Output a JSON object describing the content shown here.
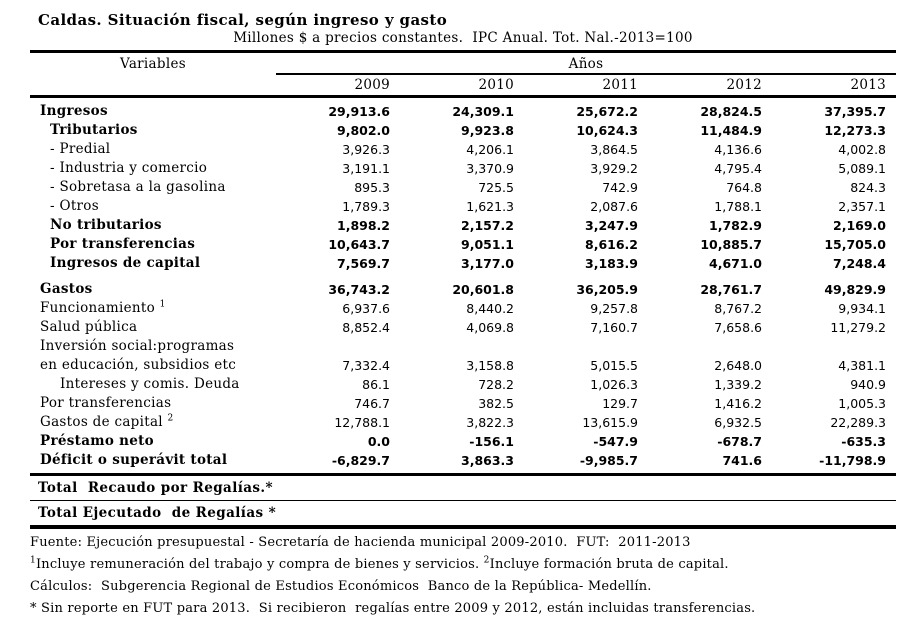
{
  "title": "Caldas. Situación fiscal, según ingreso y gasto",
  "subtitle": "Millones $ a precios constantes.  IPC Anual. Tot. Nal.-2013=100",
  "header": {
    "variables_label": "Variables",
    "years_label": "Años",
    "years": [
      "2009",
      "2010",
      "2011",
      "2012",
      "2013"
    ]
  },
  "table": {
    "rows": [
      {
        "label": "Ingresos",
        "bold": true,
        "indent": 0,
        "values": [
          "29,913.6",
          "24,309.1",
          "25,672.2",
          "28,824.5",
          "37,395.7"
        ]
      },
      {
        "label": "Tributarios",
        "bold": true,
        "indent": 1,
        "values": [
          "9,802.0",
          "9,923.8",
          "10,624.3",
          "11,484.9",
          "12,273.3"
        ]
      },
      {
        "label": "- Predial",
        "bold": false,
        "indent": 1,
        "values": [
          "3,926.3",
          "4,206.1",
          "3,864.5",
          "4,136.6",
          "4,002.8"
        ]
      },
      {
        "label": "- Industria y comercio",
        "bold": false,
        "indent": 1,
        "values": [
          "3,191.1",
          "3,370.9",
          "3,929.2",
          "4,795.4",
          "5,089.1"
        ]
      },
      {
        "label": "- Sobretasa a la gasolina",
        "bold": false,
        "indent": 1,
        "values": [
          "895.3",
          "725.5",
          "742.9",
          "764.8",
          "824.3"
        ]
      },
      {
        "label": "- Otros",
        "bold": false,
        "indent": 1,
        "values": [
          "1,789.3",
          "1,621.3",
          "2,087.6",
          "1,788.1",
          "2,357.1"
        ]
      },
      {
        "label": "No tributarios",
        "bold": true,
        "indent": 1,
        "values": [
          "1,898.2",
          "2,157.2",
          "3,247.9",
          "1,782.9",
          "2,169.0"
        ]
      },
      {
        "label": "Por transferencias",
        "bold": true,
        "indent": 1,
        "values": [
          "10,643.7",
          "9,051.1",
          "8,616.2",
          "10,885.7",
          "15,705.0"
        ]
      },
      {
        "label": "Ingresos de capital",
        "bold": true,
        "indent": 1,
        "values": [
          "7,569.7",
          "3,177.0",
          "3,183.9",
          "4,671.0",
          "7,248.4"
        ]
      },
      {
        "label": "Gastos",
        "bold": true,
        "indent": 0,
        "gap_before": true,
        "values": [
          "36,743.2",
          "20,601.8",
          "36,205.9",
          "28,761.7",
          "49,829.9"
        ]
      },
      {
        "label": "Funcionamiento ",
        "sup": "1",
        "bold": false,
        "indent": 0,
        "values": [
          "6,937.6",
          "8,440.2",
          "9,257.8",
          "8,767.2",
          "9,934.1"
        ]
      },
      {
        "label": "Salud pública",
        "bold": false,
        "indent": 0,
        "values": [
          "8,852.4",
          "4,069.8",
          "7,160.7",
          "7,658.6",
          "11,279.2"
        ]
      },
      {
        "label2": [
          "Inversión social:programas",
          "en educación, subsidios etc"
        ],
        "bold": false,
        "indent": 0,
        "values": [
          "7,332.4",
          "3,158.8",
          "5,015.5",
          "2,648.0",
          "4,381.1"
        ]
      },
      {
        "label": "Intereses y comis. Deuda",
        "bold": false,
        "indent": 2,
        "values": [
          "86.1",
          "728.2",
          "1,026.3",
          "1,339.2",
          "940.9"
        ]
      },
      {
        "label": "Por transferencias",
        "bold": false,
        "indent": 0,
        "values": [
          "746.7",
          "382.5",
          "129.7",
          "1,416.2",
          "1,005.3"
        ]
      },
      {
        "label": "Gastos de capital ",
        "sup": "2",
        "bold": false,
        "indent": 0,
        "values": [
          "12,788.1",
          "3,822.3",
          "13,615.9",
          "6,932.5",
          "22,289.3"
        ]
      },
      {
        "label": "Préstamo neto",
        "bold": true,
        "indent": 0,
        "values": [
          "0.0",
          "-156.1",
          "-547.9",
          "-678.7",
          "-635.3"
        ]
      },
      {
        "label": "Déficit o superávit total",
        "bold": true,
        "indent": 0,
        "values": [
          "-6,829.7",
          "3,863.3",
          "-9,985.7",
          "741.6",
          "-11,798.9"
        ]
      }
    ]
  },
  "totals": [
    {
      "label": "Total  Recaudo por Regalías.*"
    },
    {
      "label": "Total Ejecutado  de Regalías *"
    }
  ],
  "footer": {
    "fuente": "Fuente: Ejecución presupuestal - Secretaría de hacienda municipal 2009-2010.  FUT:  2011-2013",
    "note_sup1": "1",
    "note_text1": "Incluye remuneración del trabajo y compra de bienes y servicios. ",
    "note_sup2": "2",
    "note_text2": "Incluye formación bruta de capital.",
    "calculos": "Cálculos:  Subgerencia Regional de Estudios Económicos  Banco de la República- Medellín.",
    "asterisco": "* Sin reporte en FUT para 2013.  Si recibieron  regalías entre 2009 y 2012, están incluidas transferencias."
  }
}
